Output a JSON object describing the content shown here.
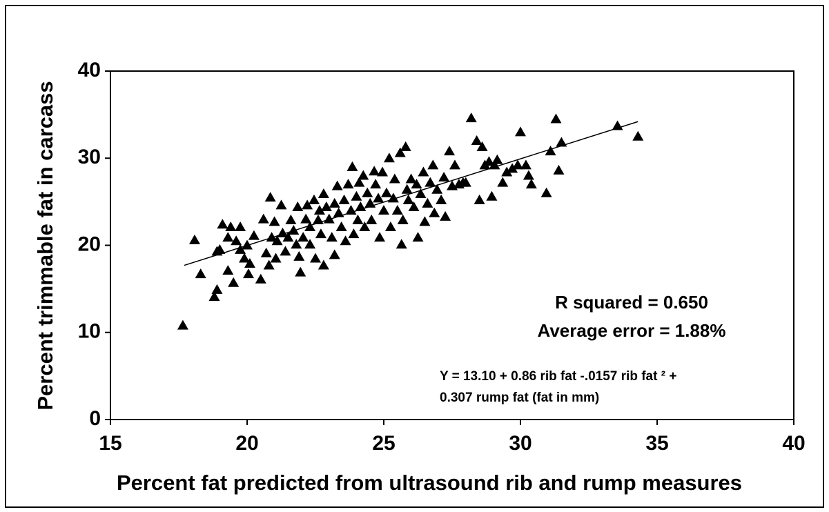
{
  "chart_data": {
    "type": "scatter",
    "xlabel": "Percent fat predicted from ultrasound rib and rump measures",
    "ylabel": "Percent trimmable fat in carcass",
    "xlim": [
      15,
      40
    ],
    "xticks": [
      15,
      20,
      25,
      30,
      35,
      40
    ],
    "ylim": [
      0,
      40
    ],
    "yticks": [
      0,
      10,
      20,
      30,
      40
    ],
    "color": "#000000",
    "marker": "triangle",
    "x": [
      17.65,
      18.08,
      18.3,
      18.8,
      18.9,
      18.9,
      19.0,
      19.1,
      19.3,
      19.4,
      19.3,
      19.5,
      19.6,
      19.75,
      19.75,
      19.9,
      20.0,
      20.05,
      20.1,
      20.25,
      20.5,
      20.6,
      20.7,
      20.85,
      20.8,
      20.9,
      21.0,
      21.05,
      21.1,
      21.25,
      21.3,
      21.4,
      21.5,
      21.6,
      21.7,
      21.8,
      21.85,
      21.9,
      21.95,
      22.05,
      22.15,
      22.2,
      22.3,
      22.3,
      22.45,
      22.5,
      22.6,
      22.65,
      22.7,
      22.8,
      22.8,
      22.9,
      23.0,
      23.1,
      23.2,
      23.2,
      23.3,
      23.35,
      23.45,
      23.55,
      23.6,
      23.7,
      23.8,
      23.85,
      23.9,
      24.0,
      24.05,
      24.1,
      24.15,
      24.25,
      24.3,
      24.4,
      24.5,
      24.55,
      24.65,
      24.7,
      24.8,
      24.85,
      24.95,
      25.0,
      25.1,
      25.2,
      25.25,
      25.35,
      25.4,
      25.5,
      25.6,
      25.65,
      25.7,
      25.8,
      25.85,
      25.9,
      26.0,
      26.1,
      26.2,
      26.25,
      26.35,
      26.45,
      26.5,
      26.6,
      26.7,
      26.8,
      26.85,
      26.95,
      27.1,
      27.2,
      27.25,
      27.4,
      27.5,
      27.6,
      27.75,
      27.9,
      28.0,
      28.2,
      28.4,
      28.5,
      28.6,
      28.7,
      28.85,
      28.95,
      29.05,
      29.15,
      29.35,
      29.5,
      29.7,
      29.9,
      30.0,
      30.2,
      30.3,
      30.4,
      30.95,
      31.1,
      31.3,
      31.4,
      31.5,
      33.55,
      34.3
    ],
    "values": [
      10.8,
      20.6,
      16.7,
      14.1,
      14.9,
      19.3,
      19.5,
      22.4,
      20.9,
      22.1,
      17.1,
      15.7,
      20.5,
      22.1,
      19.5,
      18.5,
      20.0,
      16.7,
      17.9,
      21.1,
      16.1,
      23.0,
      19.1,
      25.5,
      17.7,
      20.9,
      22.7,
      18.5,
      20.5,
      24.6,
      21.4,
      19.3,
      20.9,
      22.9,
      21.7,
      20.1,
      24.4,
      18.7,
      16.9,
      20.9,
      23.0,
      24.6,
      22.1,
      20.1,
      25.2,
      18.5,
      22.9,
      24.0,
      21.3,
      17.7,
      25.9,
      24.4,
      23.0,
      20.9,
      24.8,
      18.9,
      26.8,
      23.7,
      22.1,
      25.2,
      20.5,
      27.0,
      24.0,
      29.0,
      21.3,
      25.6,
      22.9,
      27.2,
      24.4,
      28.0,
      22.1,
      26.0,
      24.8,
      22.9,
      28.5,
      27.0,
      25.4,
      20.9,
      28.4,
      24.0,
      26.0,
      30.0,
      22.1,
      25.4,
      27.6,
      24.0,
      30.6,
      20.1,
      22.9,
      31.3,
      26.4,
      25.2,
      27.6,
      24.4,
      27.0,
      20.9,
      25.9,
      28.4,
      22.7,
      24.8,
      27.2,
      29.2,
      23.7,
      26.4,
      25.2,
      27.8,
      23.3,
      30.8,
      26.8,
      29.2,
      27.0,
      27.2,
      27.2,
      34.6,
      32.0,
      25.2,
      31.3,
      29.2,
      29.6,
      25.6,
      29.2,
      29.8,
      27.2,
      28.4,
      28.8,
      29.2,
      33.0,
      29.2,
      28.0,
      27.0,
      26.0,
      30.8,
      34.5,
      28.6,
      31.8,
      33.7,
      32.5
    ],
    "trendline": {
      "x": [
        17.7,
        34.3
      ],
      "y": [
        17.7,
        34.2
      ]
    },
    "annotations": [
      "R squared = 0.650",
      "Average error = 1.88%",
      "Y = 13.10 + 0.86 rib fat -.0157 rib fat ² +",
      "0.307 rump fat (fat in mm)"
    ]
  }
}
